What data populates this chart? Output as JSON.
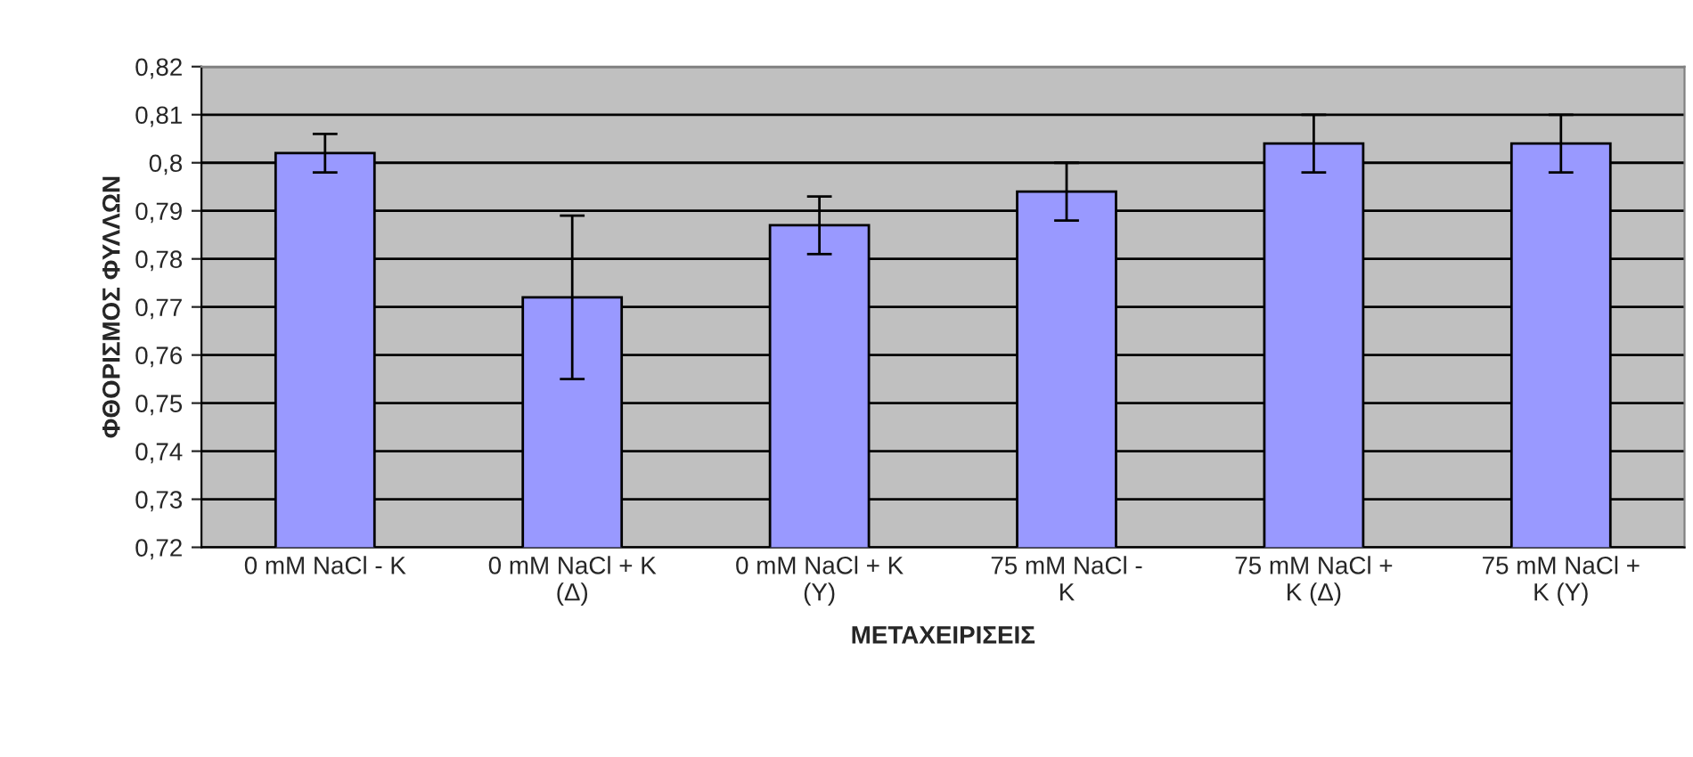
{
  "chart_data": {
    "type": "bar",
    "xlabel": "ΜΕΤΑΧΕΙΡΙΣΕΙΣ",
    "ylabel": "ΦΘΟΡΙΣΜΟΣ ΦΥΛΛΩΝ",
    "categories": [
      "0 mM NaCl - K",
      "0 mM NaCl + K\n(Δ)",
      "0 mM NaCl + K\n(Y)",
      "75 mM NaCl -\nK",
      "75 mM NaCl +\nK (Δ)",
      "75 mM NaCl +\nK (Y)"
    ],
    "values": [
      0.802,
      0.772,
      0.787,
      0.794,
      0.804,
      0.804
    ],
    "errors": [
      0.004,
      0.017,
      0.006,
      0.006,
      0.006,
      0.006
    ],
    "color": "#9999ff",
    "ylim": [
      0.72,
      0.82
    ],
    "yticks": [
      {
        "value": 0.72,
        "label": "0,72"
      },
      {
        "value": 0.73,
        "label": "0,73"
      },
      {
        "value": 0.74,
        "label": "0,74"
      },
      {
        "value": 0.75,
        "label": "0,75"
      },
      {
        "value": 0.76,
        "label": "0,76"
      },
      {
        "value": 0.77,
        "label": "0,77"
      },
      {
        "value": 0.78,
        "label": "0,78"
      },
      {
        "value": 0.79,
        "label": "0,79"
      },
      {
        "value": 0.8,
        "label": "0,8"
      },
      {
        "value": 0.81,
        "label": "0,81"
      },
      {
        "value": 0.82,
        "label": "0,82"
      }
    ],
    "grid": "y",
    "legend": false
  }
}
